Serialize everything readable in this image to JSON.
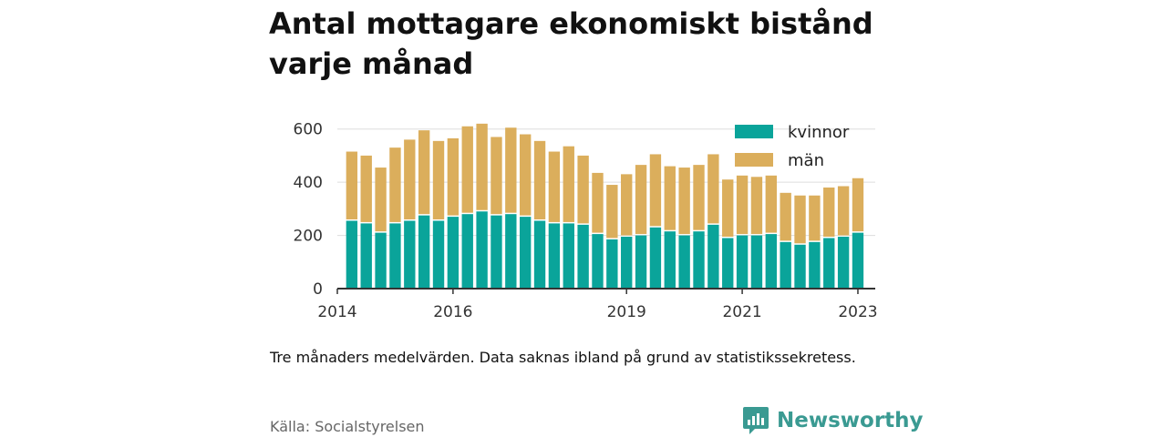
{
  "title": "Antal mottagare ekonomiskt bistånd varje månad",
  "note": "Tre månaders medelvärden. Data saknas ibland på grund av statistikssekretess.",
  "source": "Källa: Socialstyrelsen",
  "brand": {
    "name": "Newsworthy",
    "icon": "newsworthy-logo-icon",
    "color": "#3a9a92"
  },
  "chart_data": {
    "type": "bar",
    "stacked": true,
    "x": [
      2014.25,
      2014.5,
      2014.75,
      2015.0,
      2015.25,
      2015.5,
      2015.75,
      2016.0,
      2016.25,
      2016.5,
      2016.75,
      2017.0,
      2017.25,
      2017.5,
      2017.75,
      2018.0,
      2018.25,
      2018.5,
      2018.75,
      2019.0,
      2019.25,
      2019.5,
      2019.75,
      2020.0,
      2020.25,
      2020.5,
      2020.75,
      2021.0,
      2021.25,
      2021.5,
      2021.75,
      2022.0,
      2022.25,
      2022.5,
      2022.75,
      2023.0
    ],
    "series": [
      {
        "name": "kvinnor",
        "color": "#0aa49a",
        "values": [
          255,
          245,
          210,
          245,
          255,
          275,
          255,
          270,
          280,
          290,
          275,
          280,
          270,
          255,
          245,
          245,
          240,
          205,
          185,
          195,
          200,
          230,
          215,
          200,
          215,
          240,
          190,
          200,
          200,
          205,
          175,
          165,
          175,
          190,
          195,
          210
        ]
      },
      {
        "name": "män",
        "color": "#dbae5c",
        "values": [
          260,
          255,
          245,
          285,
          305,
          320,
          300,
          295,
          330,
          330,
          295,
          325,
          310,
          300,
          270,
          290,
          260,
          230,
          205,
          235,
          265,
          275,
          245,
          255,
          250,
          265,
          220,
          225,
          220,
          220,
          185,
          185,
          175,
          190,
          190,
          205
        ]
      }
    ],
    "xticks": [
      2014,
      2016,
      2019,
      2021,
      2023
    ],
    "yticks": [
      0,
      200,
      400,
      600
    ],
    "ylim": [
      0,
      640
    ],
    "xlim": [
      2014,
      2023.3
    ],
    "xlabel": "",
    "ylabel": "",
    "grid": true,
    "legend": "top-right"
  }
}
